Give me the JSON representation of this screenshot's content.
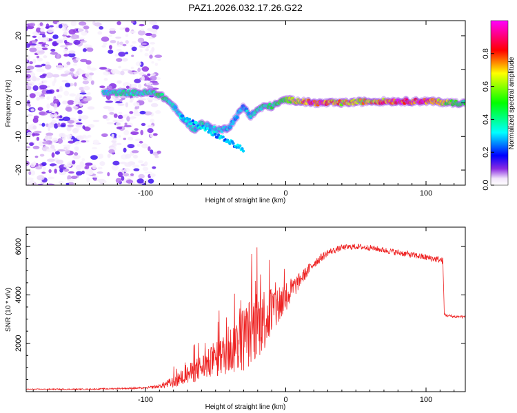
{
  "chart_data": [
    {
      "type": "heatmap",
      "title": "PAZ1.2026.032.17.26.G22",
      "xlabel": "Height of straight line (km)",
      "ylabel": "Frequency (Hz)",
      "xlim": [
        -185,
        128
      ],
      "ylim": [
        -24.5,
        24.5
      ],
      "xticks": [
        -100,
        0,
        100
      ],
      "yticks": [
        -20,
        -10,
        0,
        10,
        20
      ],
      "xtick_labels": [
        "-100",
        "0",
        "100"
      ],
      "ytick_labels": [
        "-20",
        "-10",
        "0",
        "10",
        "20"
      ],
      "colorbar": {
        "label": "Normalized spectral amplitude",
        "range": [
          0,
          1
        ],
        "ticks": [
          0.0,
          0.2,
          0.4,
          0.6,
          0.8
        ],
        "tick_labels": [
          "0.0",
          "0.2",
          "0.4",
          "0.6",
          "0.8"
        ]
      },
      "ridge": {
        "x": [
          -130,
          -120,
          -110,
          -100,
          -95,
          -90,
          -85,
          -80,
          -75,
          -70,
          -65,
          -60,
          -55,
          -50,
          -45,
          -40,
          -35,
          -30,
          -25,
          -20,
          -15,
          -10,
          -5,
          0,
          20,
          40,
          60,
          80,
          100,
          120,
          128
        ],
        "freq": [
          3,
          3,
          3,
          3,
          3,
          2.5,
          1,
          -1,
          -4,
          -6,
          -8,
          -6,
          -7,
          -8,
          -8,
          -7,
          -4,
          -1,
          -4,
          -2,
          -1,
          -1,
          0,
          1,
          0,
          0,
          0.5,
          0.5,
          0.5,
          0,
          0
        ],
        "amplitude": [
          0.35,
          0.4,
          0.4,
          0.4,
          0.45,
          0.5,
          0.45,
          0.35,
          0.35,
          0.35,
          0.35,
          0.4,
          0.35,
          0.35,
          0.35,
          0.3,
          0.3,
          0.3,
          0.35,
          0.4,
          0.45,
          0.45,
          0.5,
          0.55,
          0.95,
          0.75,
          0.7,
          0.95,
          0.9,
          0.55,
          0.5
        ]
      }
    },
    {
      "type": "line",
      "xlabel": "Height of straight line (km)",
      "ylabel": "SNR (10 * v/v)",
      "xlim": [
        -185,
        128
      ],
      "ylim": [
        0,
        6800
      ],
      "xticks": [
        -100,
        0,
        100
      ],
      "yticks": [
        2000,
        4000,
        6000
      ],
      "xtick_labels": [
        "-100",
        "0",
        "100"
      ],
      "ytick_labels": [
        "2000",
        "4000",
        "6000"
      ],
      "color": "#ee2222",
      "series": [
        {
          "name": "SNR",
          "x": [
            -185,
            -160,
            -140,
            -120,
            -100,
            -90,
            -80,
            -70,
            -60,
            -50,
            -40,
            -30,
            -20,
            -10,
            0,
            10,
            20,
            30,
            40,
            50,
            60,
            70,
            80,
            90,
            100,
            110,
            112,
            113,
            115,
            120,
            128
          ],
          "y": [
            100,
            100,
            100,
            130,
            150,
            220,
            400,
            700,
            1000,
            1300,
            1700,
            2200,
            2800,
            3300,
            3900,
            4600,
            5300,
            5750,
            5950,
            6000,
            5950,
            5850,
            5750,
            5650,
            5550,
            5450,
            5400,
            3200,
            3150,
            3100,
            3100
          ],
          "noise": [
            20,
            25,
            25,
            30,
            40,
            80,
            250,
            400,
            550,
            700,
            1000,
            1400,
            1500,
            1200,
            700,
            300,
            200,
            150,
            120,
            120,
            120,
            120,
            130,
            130,
            140,
            140,
            140,
            60,
            60,
            60,
            60
          ]
        }
      ]
    }
  ],
  "colors": {
    "axis": "#000000",
    "snr_line": "#ee2222"
  }
}
